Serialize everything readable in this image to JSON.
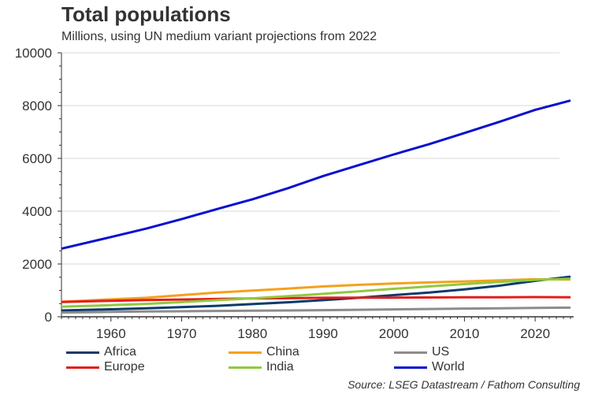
{
  "chart_data": {
    "type": "line",
    "title": "Total populations",
    "subtitle": "Millions, using UN medium variant projections from 2022",
    "xlabel": "",
    "ylabel": "",
    "xlim": [
      1953,
      2025
    ],
    "ylim": [
      0,
      10000
    ],
    "yticks": [
      0,
      2000,
      4000,
      6000,
      8000,
      10000
    ],
    "xticks": [
      1960,
      1970,
      1980,
      1990,
      2000,
      2010,
      2020
    ],
    "grid": true,
    "legend_position": "bottom",
    "x": [
      1953,
      1960,
      1965,
      1970,
      1975,
      1980,
      1985,
      1990,
      1995,
      2000,
      2005,
      2010,
      2015,
      2020,
      2025
    ],
    "series": [
      {
        "name": "Africa",
        "color": "#0b3a6b",
        "values": [
          240,
          285,
          320,
          365,
          415,
          480,
          550,
          630,
          720,
          820,
          920,
          1040,
          1180,
          1360,
          1520
        ]
      },
      {
        "name": "China",
        "color": "#f5a11c",
        "values": [
          570,
          660,
          720,
          820,
          920,
          990,
          1070,
          1150,
          1210,
          1260,
          1300,
          1340,
          1380,
          1420,
          1410
        ]
      },
      {
        "name": "US",
        "color": "#8c8c8c",
        "values": [
          160,
          185,
          200,
          210,
          220,
          230,
          240,
          250,
          265,
          280,
          295,
          310,
          320,
          335,
          345
        ]
      },
      {
        "name": "Europe",
        "color": "#e31d1d",
        "values": [
          560,
          605,
          635,
          655,
          675,
          695,
          705,
          720,
          725,
          725,
          730,
          740,
          740,
          745,
          740
        ]
      },
      {
        "name": "India",
        "color": "#92c83e",
        "values": [
          380,
          440,
          490,
          555,
          630,
          700,
          780,
          870,
          960,
          1060,
          1150,
          1240,
          1320,
          1400,
          1440
        ]
      },
      {
        "name": "World",
        "color": "#0a0fce",
        "values": [
          2580,
          3020,
          3340,
          3700,
          4080,
          4450,
          4870,
          5330,
          5740,
          6150,
          6540,
          6960,
          7390,
          7840,
          8190
        ]
      }
    ]
  },
  "legend": [
    {
      "label": "Africa",
      "color": "#0b3a6b"
    },
    {
      "label": "China",
      "color": "#f5a11c"
    },
    {
      "label": "US",
      "color": "#8c8c8c"
    },
    {
      "label": "Europe",
      "color": "#e31d1d"
    },
    {
      "label": "India",
      "color": "#92c83e"
    },
    {
      "label": "World",
      "color": "#0a0fce"
    }
  ],
  "source": "Source: LSEG Datastream / Fathom Consulting"
}
